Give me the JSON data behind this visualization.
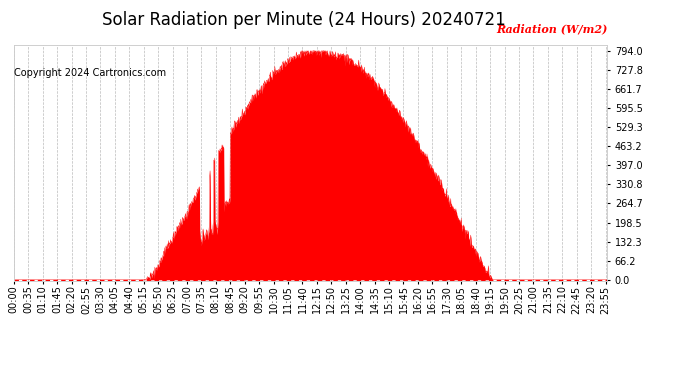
{
  "title": "Solar Radiation per Minute (24 Hours) 20240721",
  "copyright_text": "Copyright 2024 Cartronics.com",
  "ylabel": "Radiation (W/m2)",
  "ylabel_color": "#ff0000",
  "copyright_color": "#000000",
  "title_color": "#000000",
  "fill_color": "#ff0000",
  "line_color": "#ff0000",
  "background_color": "#ffffff",
  "grid_color": "#aaaaaa",
  "dashed_zero_color": "#ff0000",
  "ymax": 794.0,
  "yticks": [
    0.0,
    66.2,
    132.3,
    198.5,
    264.7,
    330.8,
    397.0,
    463.2,
    529.3,
    595.5,
    661.7,
    727.8,
    794.0
  ],
  "total_minutes": 1440,
  "title_fontsize": 12,
  "axis_fontsize": 7,
  "copyright_fontsize": 7,
  "ylabel_fontsize": 8
}
